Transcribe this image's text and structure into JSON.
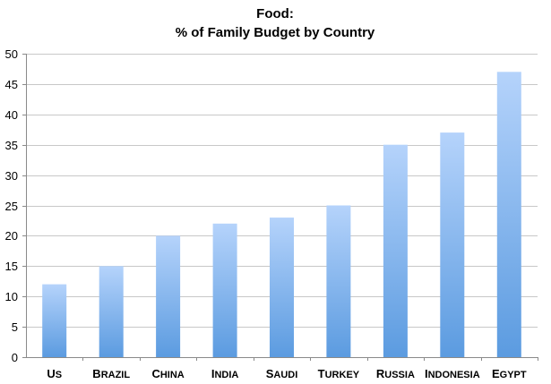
{
  "chart_data": {
    "type": "bar",
    "title": "Food:",
    "subtitle": "% of Family Budget by Country",
    "categories": [
      "US",
      "Brazil",
      "China",
      "India",
      "Saudi",
      "Turkey",
      "Russia",
      "Indonesia",
      "Egypt"
    ],
    "values": [
      12,
      15,
      20,
      22,
      23,
      25,
      35,
      37,
      47
    ],
    "xlabel": "",
    "ylabel": "",
    "ylim": [
      0,
      50
    ],
    "yticks": [
      "0",
      "5",
      "10",
      "15",
      "20",
      "25",
      "30",
      "35",
      "40",
      "45",
      "50"
    ],
    "grid": true,
    "legend": "none",
    "colors": {
      "bar_top": "#b5d3fb",
      "bar_bottom": "#5b9be0",
      "gridline": "#c8c8c8",
      "axis": "#8a8a8a"
    }
  }
}
